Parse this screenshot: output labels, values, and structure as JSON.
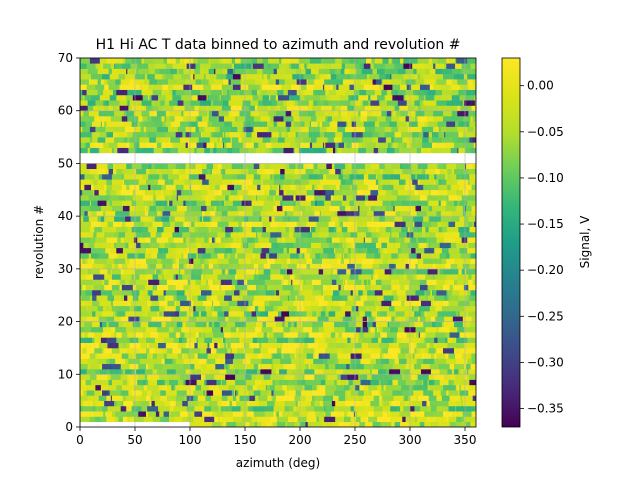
{
  "chart_data": {
    "type": "heatmap",
    "title": "H1 Hi AC T data binned to azimuth and revolution #",
    "xlabel": "azimuth (deg)",
    "ylabel": "revolution #",
    "xlim": [
      0,
      360
    ],
    "ylim": [
      0,
      70
    ],
    "x_ticks": [
      0,
      50,
      100,
      150,
      200,
      250,
      300,
      350
    ],
    "y_ticks": [
      0,
      10,
      20,
      30,
      40,
      50,
      60,
      70
    ],
    "grid": true,
    "colormap": "viridis",
    "colorbar": {
      "label": "Signal, V",
      "range": [
        -0.37,
        0.03
      ],
      "ticks": [
        0.0,
        -0.05,
        -0.1,
        -0.15,
        -0.2,
        -0.25,
        -0.3,
        -0.35
      ],
      "tick_labels": [
        "0.00",
        "−0.05",
        "−0.10",
        "−0.15",
        "−0.20",
        "−0.25",
        "−0.30",
        "−0.35"
      ]
    },
    "azimuth_bins": 360,
    "revolutions": 70,
    "typical_signal_range": [
      -0.12,
      0.03
    ],
    "gaps": [
      {
        "revolutions": [
          50,
          52
        ],
        "azimuth": [
          0,
          360
        ]
      },
      {
        "revolutions": [
          0,
          1
        ],
        "azimuth": [
          0,
          100
        ]
      }
    ]
  }
}
